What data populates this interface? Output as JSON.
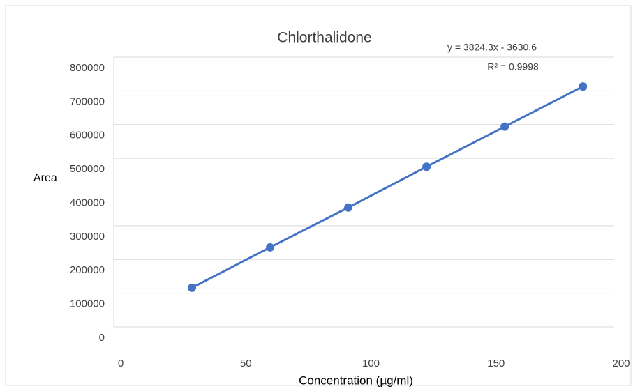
{
  "chart_data": {
    "type": "scatter",
    "title": "Chlorthalidone",
    "x_label": "Concentration (µg/ml)",
    "y_label": "Area",
    "annotations": [
      "y = 3824.3x - 3630.6",
      "R² = 0.9998"
    ],
    "series": [
      {
        "color": "#4472c4",
        "x": [
          31.25,
          62.5,
          93.75,
          125,
          156.25,
          187.5
        ],
        "values": [
          116000,
          236000,
          354000,
          475000,
          594000,
          713000
        ]
      }
    ],
    "xlim": [
      0,
      200
    ],
    "xticks": [
      0,
      50,
      100,
      150,
      200
    ],
    "ylim": [
      0,
      800000
    ],
    "yticks": [
      0,
      100000,
      200000,
      300000,
      400000,
      500000,
      600000,
      700000,
      800000
    ],
    "grid": true
  }
}
